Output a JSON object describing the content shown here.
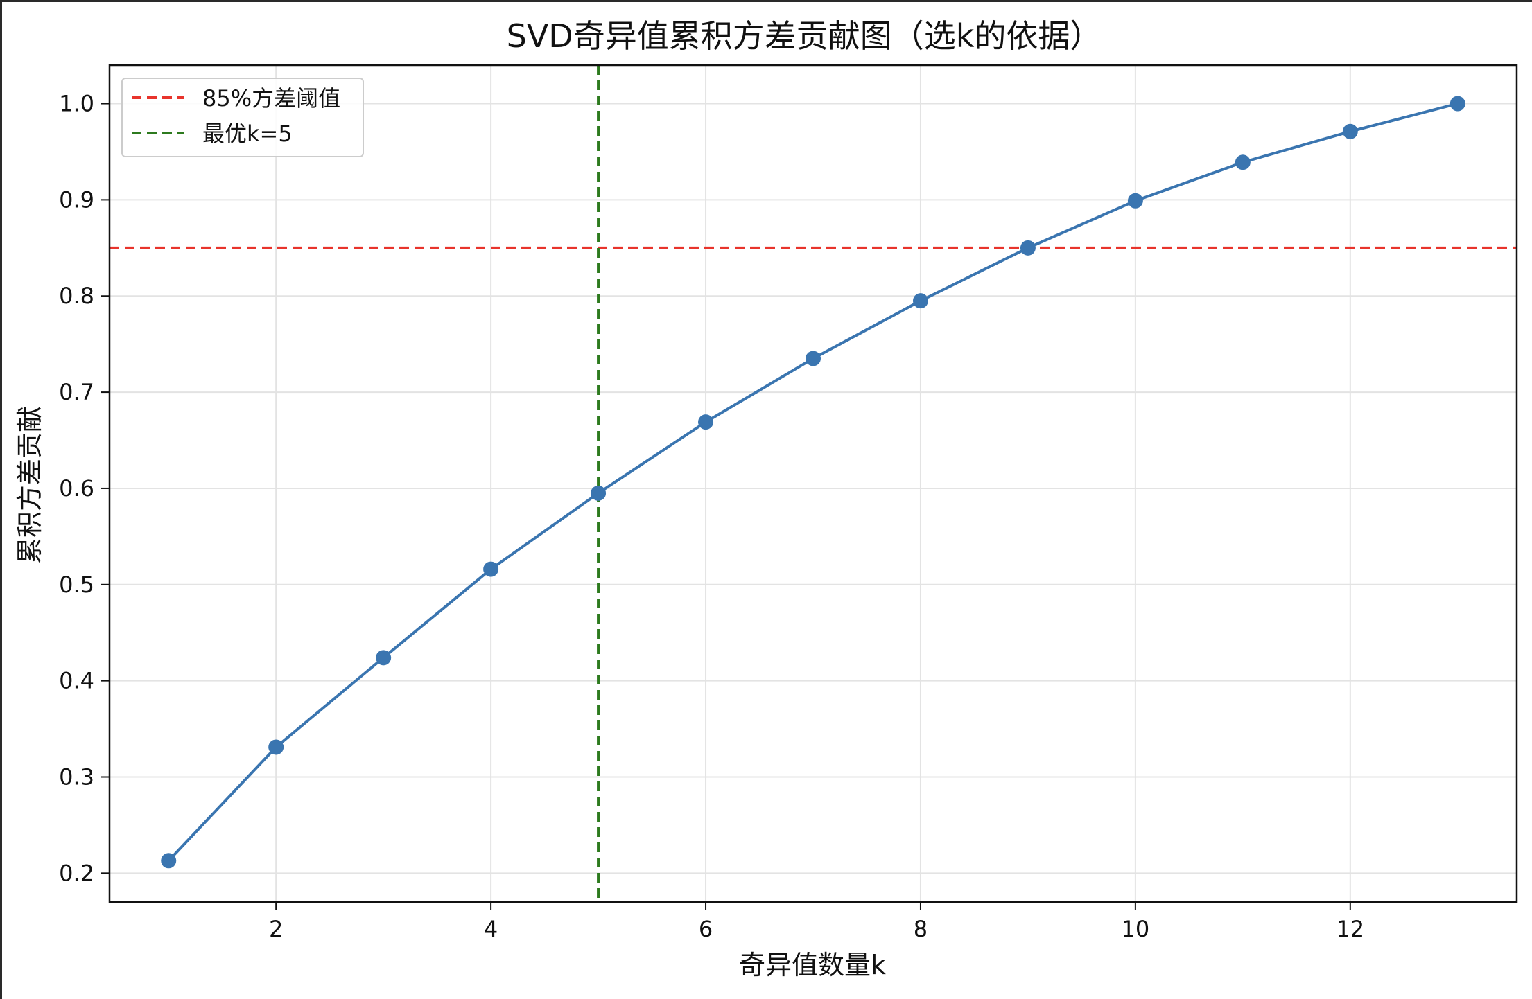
{
  "chart_data": {
    "type": "line",
    "title": "SVD奇异值累积方差贡献图（选k的依据）",
    "xlabel": "奇异值数量k",
    "ylabel": "累积方差贡献",
    "xlim": [
      0.45,
      13.55
    ],
    "ylim": [
      0.17,
      1.04
    ],
    "x_ticks": [
      2,
      4,
      6,
      8,
      10,
      12
    ],
    "y_ticks": [
      0.2,
      0.3,
      0.4,
      0.5,
      0.6,
      0.7,
      0.8,
      0.9,
      1.0
    ],
    "x_tick_labels": [
      "2",
      "4",
      "6",
      "8",
      "10",
      "12"
    ],
    "y_tick_labels": [
      "0.2",
      "0.3",
      "0.4",
      "0.5",
      "0.6",
      "0.7",
      "0.8",
      "0.9",
      "1.0"
    ],
    "grid": true,
    "legend_position": "top-left",
    "x": [
      1,
      2,
      3,
      4,
      5,
      6,
      7,
      8,
      9,
      10,
      11,
      12,
      13
    ],
    "series": [
      {
        "values": [
          0.213,
          0.331,
          0.424,
          0.516,
          0.595,
          0.669,
          0.735,
          0.795,
          0.85,
          0.899,
          0.939,
          0.971,
          1.0
        ],
        "color": "#3a75b0"
      }
    ],
    "reference_lines": [
      {
        "orientation": "horizontal",
        "value": 0.85,
        "label": "85%方差阈值",
        "color": "#e8342c",
        "style": "dashed"
      },
      {
        "orientation": "vertical",
        "value": 5,
        "label": "最优k=5",
        "color": "#2d7a1e",
        "style": "dashed"
      }
    ]
  }
}
